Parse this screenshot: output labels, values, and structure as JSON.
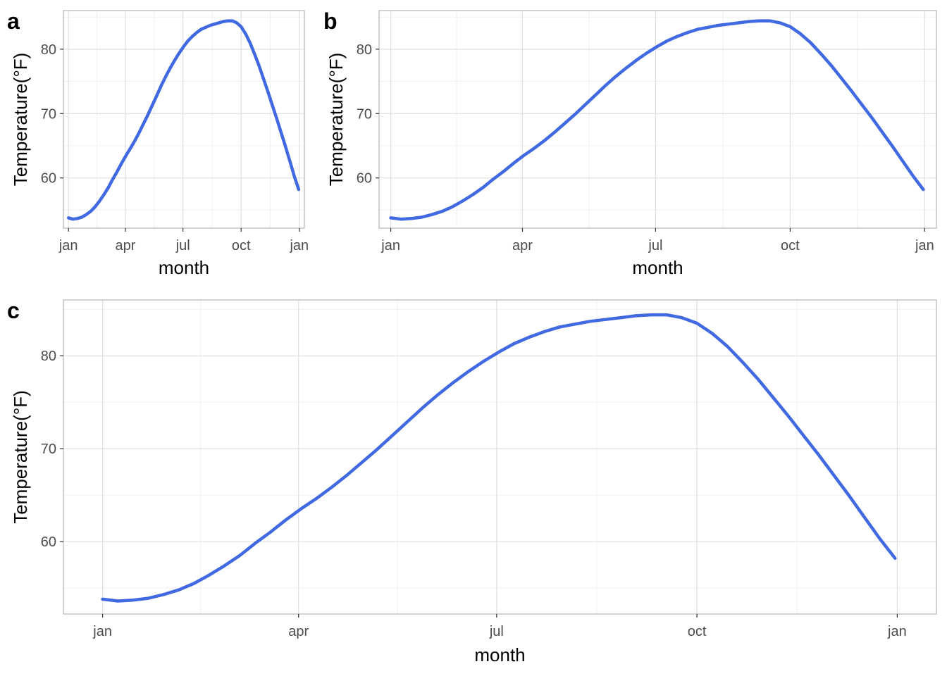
{
  "figure": {
    "panel_labels": [
      "a",
      "b",
      "c"
    ]
  },
  "chart_data": [
    {
      "type": "line",
      "panel": "a",
      "xlabel": "month",
      "ylabel": "Temperature(°F)",
      "x_ticks": [
        "jan",
        "apr",
        "jul",
        "oct",
        "jan"
      ],
      "x_tick_days": [
        1,
        91,
        182,
        274,
        366
      ],
      "xlim": [
        -7,
        374
      ],
      "y_ticks": [
        60,
        70,
        80
      ],
      "ylim": [
        52.2,
        86.0
      ],
      "grid": true,
      "line_color": "#4169e1",
      "series": [
        {
          "x": [
            1,
            8,
            15,
            22,
            29,
            36,
            43,
            50,
            57,
            64,
            71,
            78,
            85,
            92,
            99,
            106,
            113,
            120,
            127,
            134,
            141,
            148,
            155,
            162,
            169,
            176,
            183,
            190,
            197,
            204,
            211,
            218,
            225,
            232,
            239,
            246,
            253,
            260,
            267,
            274,
            281,
            288,
            295,
            302,
            309,
            316,
            323,
            330,
            337,
            344,
            351,
            358,
            365
          ],
          "y": [
            53.8,
            53.6,
            53.7,
            53.9,
            54.3,
            54.8,
            55.5,
            56.4,
            57.4,
            58.5,
            59.8,
            61.0,
            62.3,
            63.5,
            64.6,
            65.8,
            67.1,
            68.5,
            69.9,
            71.4,
            72.9,
            74.4,
            75.8,
            77.1,
            78.3,
            79.4,
            80.4,
            81.3,
            82.0,
            82.6,
            83.1,
            83.4,
            83.7,
            83.9,
            84.1,
            84.3,
            84.4,
            84.4,
            84.1,
            83.5,
            82.4,
            81.0,
            79.3,
            77.5,
            75.5,
            73.5,
            71.4,
            69.3,
            67.1,
            64.9,
            62.6,
            60.3,
            58.2
          ]
        }
      ]
    },
    {
      "type": "line",
      "panel": "b",
      "xlabel": "month",
      "ylabel": "Temperature(°F)",
      "x_ticks": [
        "jan",
        "apr",
        "jul",
        "oct",
        "jan"
      ],
      "x_tick_days": [
        1,
        91,
        182,
        274,
        366
      ],
      "xlim": [
        -7,
        374
      ],
      "y_ticks": [
        60,
        70,
        80
      ],
      "ylim": [
        52.2,
        86.0
      ],
      "grid": true,
      "line_color": "#4169e1",
      "series": [
        {
          "x": [
            1,
            8,
            15,
            22,
            29,
            36,
            43,
            50,
            57,
            64,
            71,
            78,
            85,
            92,
            99,
            106,
            113,
            120,
            127,
            134,
            141,
            148,
            155,
            162,
            169,
            176,
            183,
            190,
            197,
            204,
            211,
            218,
            225,
            232,
            239,
            246,
            253,
            260,
            267,
            274,
            281,
            288,
            295,
            302,
            309,
            316,
            323,
            330,
            337,
            344,
            351,
            358,
            365
          ],
          "y": [
            53.8,
            53.6,
            53.7,
            53.9,
            54.3,
            54.8,
            55.5,
            56.4,
            57.4,
            58.5,
            59.8,
            61.0,
            62.3,
            63.5,
            64.6,
            65.8,
            67.1,
            68.5,
            69.9,
            71.4,
            72.9,
            74.4,
            75.8,
            77.1,
            78.3,
            79.4,
            80.4,
            81.3,
            82.0,
            82.6,
            83.1,
            83.4,
            83.7,
            83.9,
            84.1,
            84.3,
            84.4,
            84.4,
            84.1,
            83.5,
            82.4,
            81.0,
            79.3,
            77.5,
            75.5,
            73.5,
            71.4,
            69.3,
            67.1,
            64.9,
            62.6,
            60.3,
            58.2
          ]
        }
      ]
    },
    {
      "type": "line",
      "panel": "c",
      "xlabel": "month",
      "ylabel": "Temperature(°F)",
      "x_ticks": [
        "jan",
        "apr",
        "jul",
        "oct",
        "jan"
      ],
      "x_tick_days": [
        1,
        91,
        182,
        274,
        366
      ],
      "xlim": [
        -17,
        384
      ],
      "y_ticks": [
        60,
        70,
        80
      ],
      "ylim": [
        52.2,
        86.0
      ],
      "grid": true,
      "line_color": "#4169e1",
      "series": [
        {
          "x": [
            1,
            8,
            15,
            22,
            29,
            36,
            43,
            50,
            57,
            64,
            71,
            78,
            85,
            92,
            99,
            106,
            113,
            120,
            127,
            134,
            141,
            148,
            155,
            162,
            169,
            176,
            183,
            190,
            197,
            204,
            211,
            218,
            225,
            232,
            239,
            246,
            253,
            260,
            267,
            274,
            281,
            288,
            295,
            302,
            309,
            316,
            323,
            330,
            337,
            344,
            351,
            358,
            365
          ],
          "y": [
            53.8,
            53.6,
            53.7,
            53.9,
            54.3,
            54.8,
            55.5,
            56.4,
            57.4,
            58.5,
            59.8,
            61.0,
            62.3,
            63.5,
            64.6,
            65.8,
            67.1,
            68.5,
            69.9,
            71.4,
            72.9,
            74.4,
            75.8,
            77.1,
            78.3,
            79.4,
            80.4,
            81.3,
            82.0,
            82.6,
            83.1,
            83.4,
            83.7,
            83.9,
            84.1,
            84.3,
            84.4,
            84.4,
            84.1,
            83.5,
            82.4,
            81.0,
            79.3,
            77.5,
            75.5,
            73.5,
            71.4,
            69.3,
            67.1,
            64.9,
            62.6,
            60.3,
            58.2
          ]
        }
      ]
    }
  ]
}
